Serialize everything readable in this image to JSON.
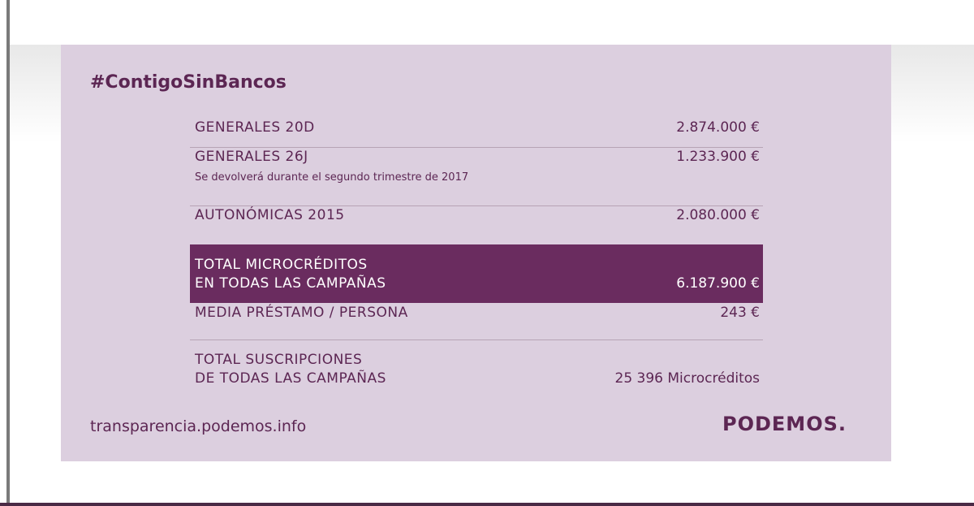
{
  "header": {
    "hashtag": "#ContigoSinBancos"
  },
  "table": {
    "rows": [
      {
        "label": [
          "GENERALES 20D"
        ],
        "value": "2.874.000 €"
      },
      {
        "label": [
          "GENERALES 26J"
        ],
        "note": "Se devolverá durante el segundo trimestre de 2017",
        "value": "1.233.900 €"
      },
      {
        "label": [
          "AUTONÓMICAS 2015"
        ],
        "value": "2.080.000 €"
      },
      {
        "label": [
          "TOTAL MICROCRÉDITOS",
          "EN TODAS LAS CAMPAÑAS"
        ],
        "value": "6.187.900 €"
      },
      {
        "label": [
          "MEDIA PRÉSTAMO / PERSONA"
        ],
        "value": "243 €"
      },
      {
        "label": [
          "TOTAL SUSCRIPCIONES",
          "DE TODAS LAS CAMPAÑAS"
        ],
        "value": "25 396 Microcréditos"
      }
    ]
  },
  "footer": {
    "url": "transparencia.podemos.info",
    "logo": "PODEMOS."
  }
}
